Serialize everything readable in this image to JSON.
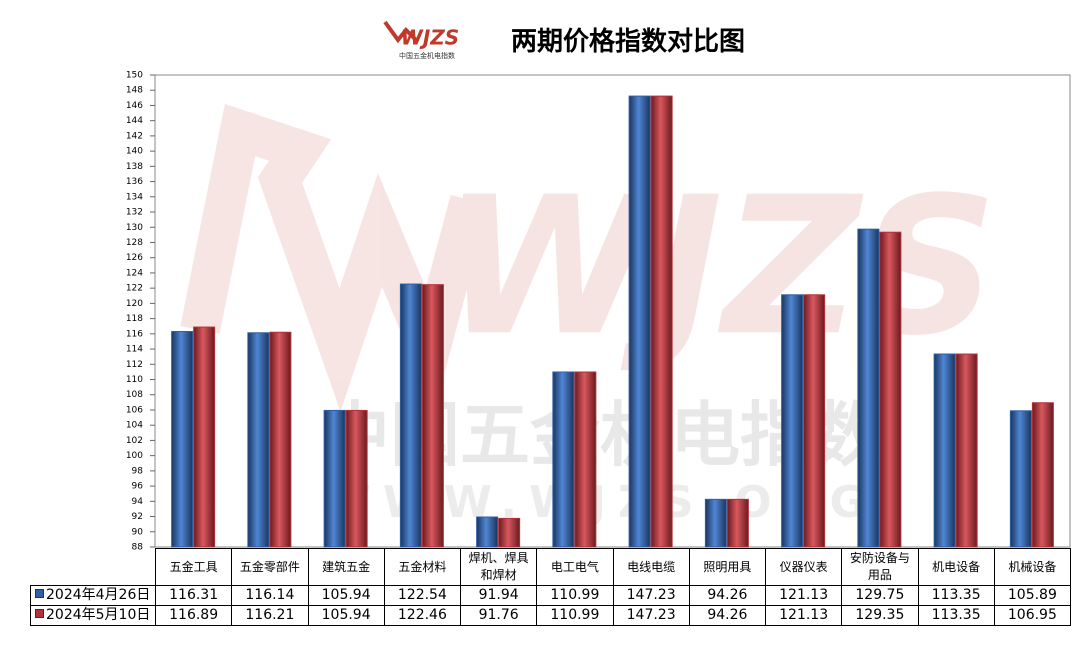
{
  "chart_data": {
    "type": "bar",
    "title": "两期价格指数对比图",
    "logo": {
      "text": "WJZS",
      "subtext": "中国五金机电指数"
    },
    "watermark": "WWW.WJZS.ORG",
    "categories": [
      "五金工具",
      "五金零部件",
      "建筑五金",
      "五金材料",
      "焊机、焊具和焊材",
      "电工电气",
      "电线电缆",
      "照明用具",
      "仪器仪表",
      "安防设备与用品",
      "机电设备",
      "机械设备"
    ],
    "series": [
      {
        "name": "2024年4月26日",
        "color": "#2f5fa6",
        "values": [
          116.31,
          116.14,
          105.94,
          122.54,
          91.94,
          110.99,
          147.23,
          94.26,
          121.13,
          129.75,
          113.35,
          105.89
        ]
      },
      {
        "name": "2024年5月10日",
        "color": "#b3323a",
        "values": [
          116.89,
          116.21,
          105.94,
          122.46,
          91.76,
          110.99,
          147.23,
          94.26,
          121.13,
          129.35,
          113.35,
          106.95
        ]
      }
    ],
    "ylim": [
      88,
      150
    ],
    "yticks": [
      88,
      90,
      92,
      94,
      96,
      98,
      100,
      102,
      104,
      106,
      108,
      110,
      112,
      114,
      116,
      118,
      120,
      122,
      124,
      126,
      128,
      130,
      132,
      134,
      136,
      138,
      140,
      142,
      144,
      146,
      148,
      150
    ],
    "grid": false,
    "legend": "table"
  }
}
